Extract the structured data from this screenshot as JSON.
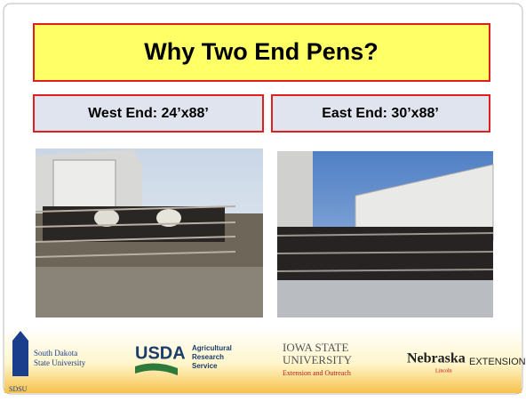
{
  "slide": {
    "title": "Why Two End Pens?",
    "panels": [
      {
        "label": "West End: 24’x88’"
      },
      {
        "label": "East End: 30’x88’"
      }
    ],
    "footer": {
      "sdsu": {
        "name_line1": "South Dakota",
        "name_line2": "State University",
        "abbr": "SDSU"
      },
      "usda": {
        "mark": "USDA",
        "line1": "Agricultural",
        "line2": "Research",
        "line3": "Service"
      },
      "iowa": {
        "line1": "IOWA STATE",
        "line2": "UNIVERSITY",
        "line3": "Extension and Outreach"
      },
      "nebraska": {
        "name": "Nebraska",
        "sub": "Lincoln",
        "ext": "EXTENSION"
      }
    }
  }
}
